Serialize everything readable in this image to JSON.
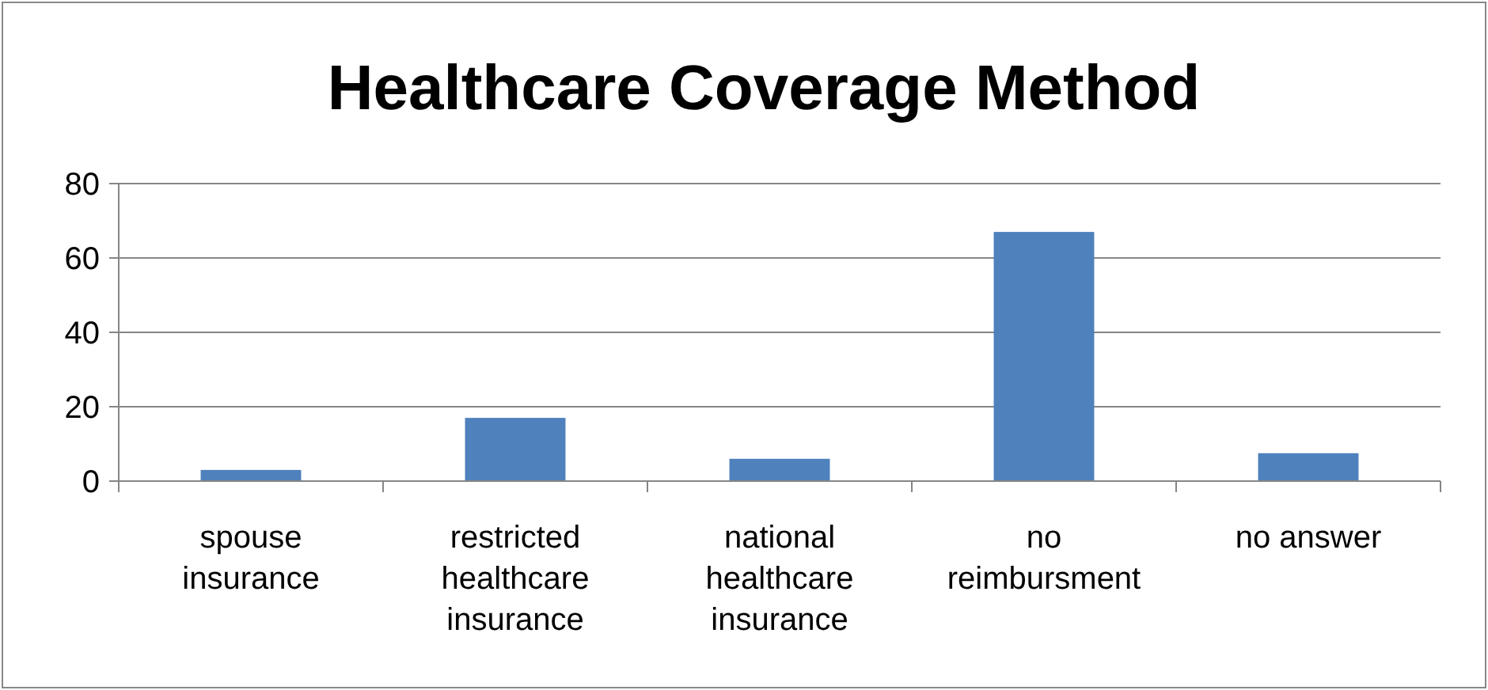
{
  "chart_data": {
    "type": "bar",
    "title": "Healthcare Coverage Method",
    "categories": [
      "spouse insurance",
      "restricted healthcare insurance",
      "national healthcare insurance",
      "no reimbursment",
      "no answer"
    ],
    "values": [
      3,
      17,
      6,
      67,
      7.5
    ],
    "color": "#4f81bd",
    "ylim": [
      0,
      80
    ],
    "yticks": [
      0,
      20,
      40,
      60,
      80
    ],
    "grid": "y"
  }
}
